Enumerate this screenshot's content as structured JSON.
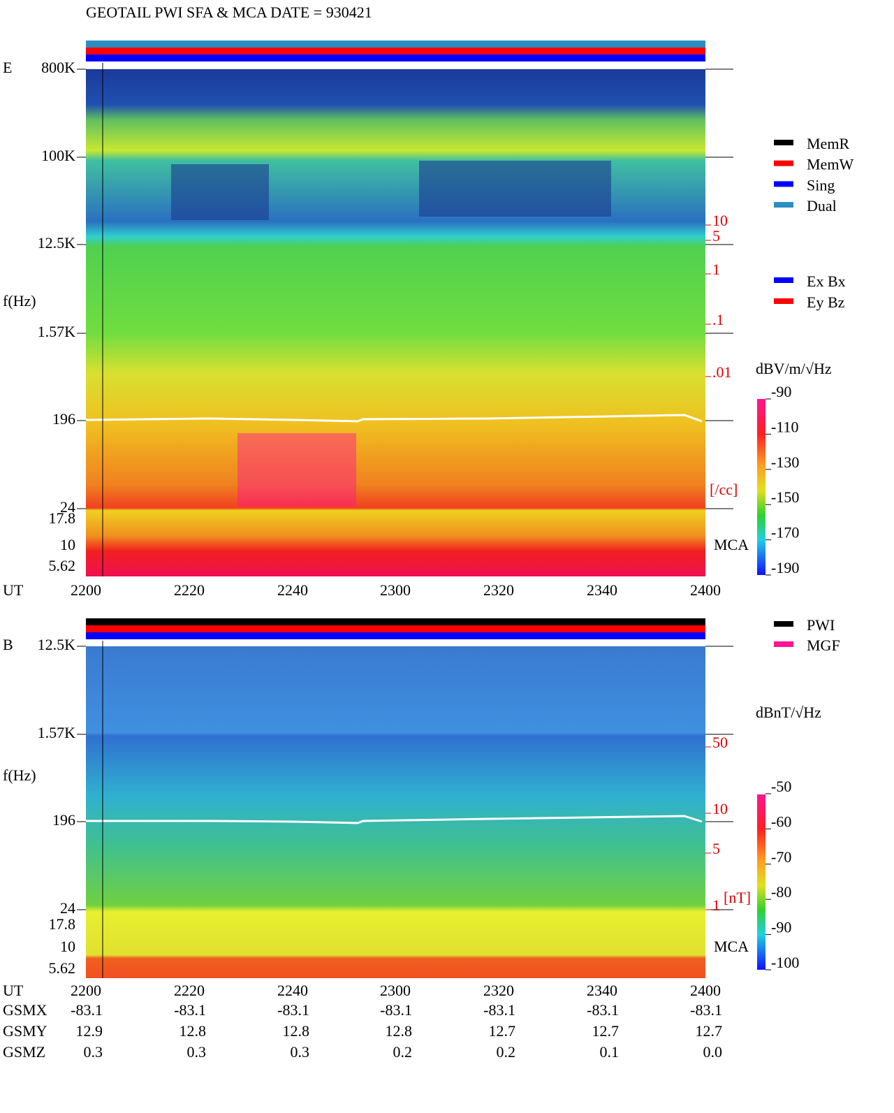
{
  "header": {
    "title": "GEOTAIL  PWI SFA & MCA   DATE = 930421"
  },
  "legend_mode": [
    {
      "name": "MemR",
      "color": "#000000"
    },
    {
      "name": "MemW",
      "color": "#ff0000"
    },
    {
      "name": "Sing",
      "color": "#0000ff"
    },
    {
      "name": "Dual",
      "color": "#2a8fc0"
    }
  ],
  "legend_component": [
    {
      "name": "Ex Bx",
      "color": "#0000ff"
    },
    {
      "name": "Ey Bz",
      "color": "#ff0000"
    }
  ],
  "legend_source": [
    {
      "name": "PWI",
      "color": "#000000"
    },
    {
      "name": "MGF",
      "color": "#ff1493"
    }
  ],
  "panels": [
    {
      "label": "E",
      "y_label": "f(Hz)",
      "freq_ticks": [
        "800K",
        "100K",
        "12.5K",
        "1.57K",
        "196",
        "24",
        "17.8",
        "10",
        "5.62"
      ],
      "mca_label": "MCA",
      "right_ticks": [
        "10",
        "5",
        "1",
        ".1",
        ".01"
      ],
      "right_unit": "[/cc]",
      "colorbar_unit": "dBV/m/√Hz",
      "colorbar_ticks": [
        "-90",
        "-110",
        "-130",
        "-150",
        "-170",
        "-190"
      ]
    },
    {
      "label": "B",
      "y_label": "f(Hz)",
      "freq_ticks": [
        "12.5K",
        "1.57K",
        "196",
        "24",
        "17.8",
        "10",
        "5.62"
      ],
      "mca_label": "MCA",
      "right_ticks": [
        "50",
        "10",
        "5",
        "1"
      ],
      "right_unit": "[nT]",
      "colorbar_unit": "dBnT/√Hz",
      "colorbar_ticks": [
        "-50",
        "-60",
        "-70",
        "-80",
        "-90",
        "-100"
      ]
    }
  ],
  "time_axis": {
    "label": "UT",
    "ticks": [
      "2200",
      "2220",
      "2240",
      "2300",
      "2320",
      "2340",
      "2400"
    ]
  },
  "orbit": [
    {
      "label": "GSMX",
      "values": [
        "-83.1",
        "-83.1",
        "-83.1",
        "-83.1",
        "-83.1",
        "-83.1",
        "-83.1"
      ]
    },
    {
      "label": "GSMY",
      "values": [
        "12.9",
        "12.8",
        "12.8",
        "12.8",
        "12.7",
        "12.7",
        "12.7"
      ]
    },
    {
      "label": "GSMZ",
      "values": [
        "0.3",
        "0.3",
        "0.3",
        "0.2",
        "0.2",
        "0.1",
        "0.0"
      ]
    }
  ]
}
